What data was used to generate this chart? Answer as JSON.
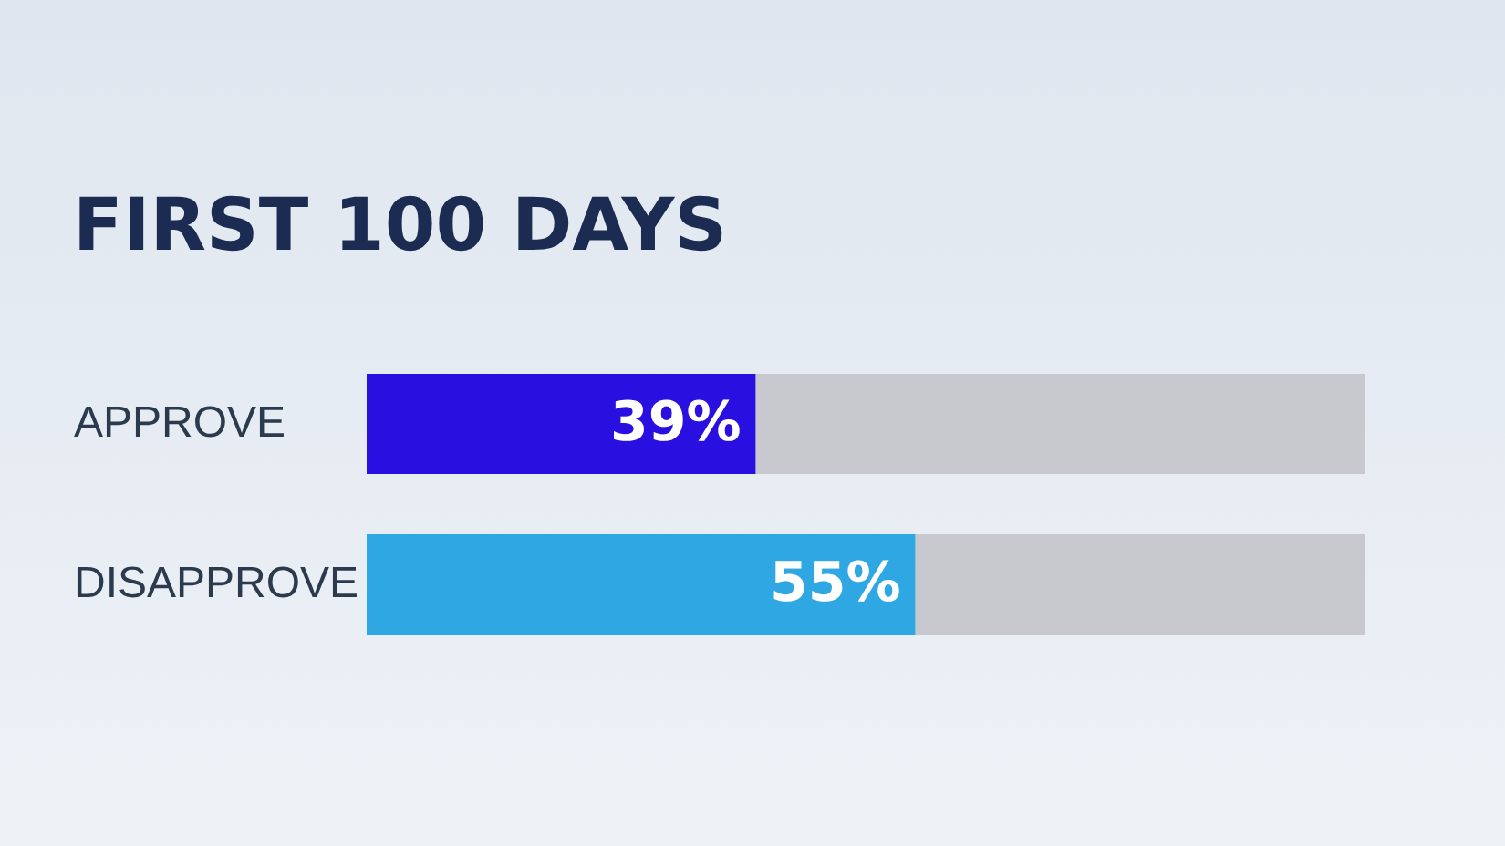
{
  "chart_data": {
    "type": "bar",
    "orientation": "horizontal",
    "stacked": true,
    "title": "FIRST 100 DAYS",
    "categories": [
      "APPROVE",
      "DISAPPROVE"
    ],
    "series": [
      {
        "colors": [
          "#2a10e0",
          "#2fa7e3"
        ],
        "values": [
          39,
          55
        ],
        "value_labels": [
          "39%",
          "55%"
        ]
      },
      {
        "color": "#c8c9ce",
        "values": [
          61,
          45
        ]
      }
    ],
    "xlim": [
      0,
      100
    ],
    "tick_labels": "y"
  }
}
